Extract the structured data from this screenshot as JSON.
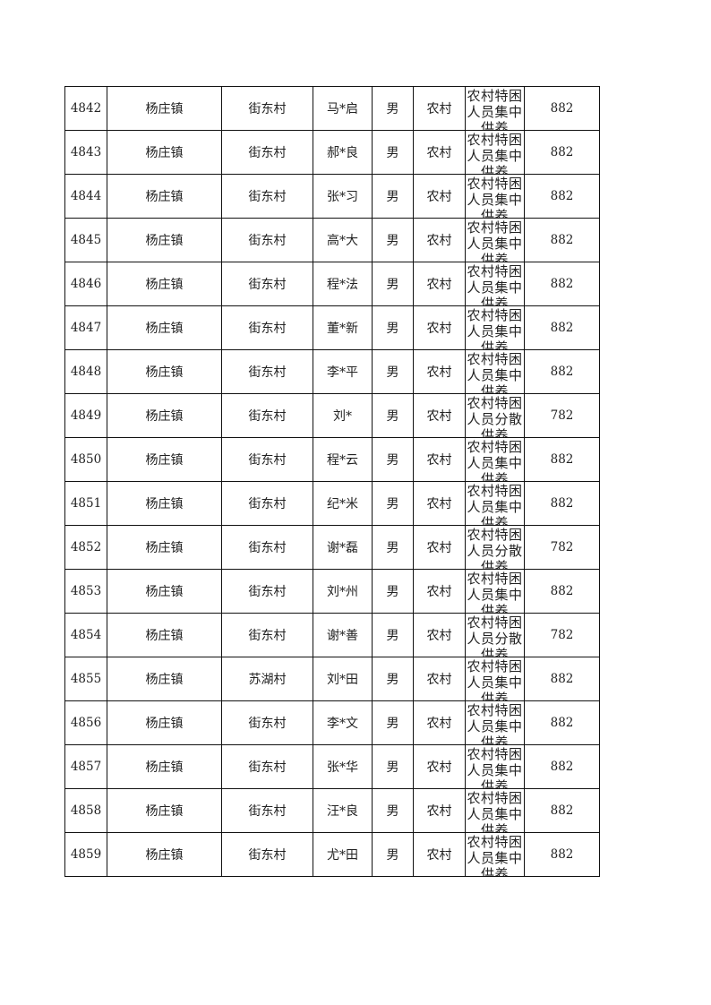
{
  "rows": [
    {
      "id": "4842",
      "town": "杨庄镇",
      "village": "街东村",
      "name": "马*启",
      "gender": "男",
      "area": "农村",
      "type": "农村特困人员集中供养",
      "amount": "882"
    },
    {
      "id": "4843",
      "town": "杨庄镇",
      "village": "街东村",
      "name": "郝*良",
      "gender": "男",
      "area": "农村",
      "type": "农村特困人员集中供养",
      "amount": "882"
    },
    {
      "id": "4844",
      "town": "杨庄镇",
      "village": "街东村",
      "name": "张*习",
      "gender": "男",
      "area": "农村",
      "type": "农村特困人员集中供养",
      "amount": "882"
    },
    {
      "id": "4845",
      "town": "杨庄镇",
      "village": "街东村",
      "name": "高*大",
      "gender": "男",
      "area": "农村",
      "type": "农村特困人员集中供养",
      "amount": "882"
    },
    {
      "id": "4846",
      "town": "杨庄镇",
      "village": "街东村",
      "name": "程*法",
      "gender": "男",
      "area": "农村",
      "type": "农村特困人员集中供养",
      "amount": "882"
    },
    {
      "id": "4847",
      "town": "杨庄镇",
      "village": "街东村",
      "name": "董*新",
      "gender": "男",
      "area": "农村",
      "type": "农村特困人员集中供养",
      "amount": "882"
    },
    {
      "id": "4848",
      "town": "杨庄镇",
      "village": "街东村",
      "name": "李*平",
      "gender": "男",
      "area": "农村",
      "type": "农村特困人员集中供养",
      "amount": "882"
    },
    {
      "id": "4849",
      "town": "杨庄镇",
      "village": "街东村",
      "name": "刘*",
      "gender": "男",
      "area": "农村",
      "type": "农村特困人员分散供养",
      "amount": "782"
    },
    {
      "id": "4850",
      "town": "杨庄镇",
      "village": "街东村",
      "name": "程*云",
      "gender": "男",
      "area": "农村",
      "type": "农村特困人员集中供养",
      "amount": "882"
    },
    {
      "id": "4851",
      "town": "杨庄镇",
      "village": "街东村",
      "name": "纪*米",
      "gender": "男",
      "area": "农村",
      "type": "农村特困人员集中供养",
      "amount": "882"
    },
    {
      "id": "4852",
      "town": "杨庄镇",
      "village": "街东村",
      "name": "谢*磊",
      "gender": "男",
      "area": "农村",
      "type": "农村特困人员分散供养",
      "amount": "782"
    },
    {
      "id": "4853",
      "town": "杨庄镇",
      "village": "街东村",
      "name": "刘*州",
      "gender": "男",
      "area": "农村",
      "type": "农村特困人员集中供养",
      "amount": "882"
    },
    {
      "id": "4854",
      "town": "杨庄镇",
      "village": "街东村",
      "name": "谢*善",
      "gender": "男",
      "area": "农村",
      "type": "农村特困人员分散供养",
      "amount": "782"
    },
    {
      "id": "4855",
      "town": "杨庄镇",
      "village": "苏湖村",
      "name": "刘*田",
      "gender": "男",
      "area": "农村",
      "type": "农村特困人员集中供养",
      "amount": "882"
    },
    {
      "id": "4856",
      "town": "杨庄镇",
      "village": "街东村",
      "name": "李*文",
      "gender": "男",
      "area": "农村",
      "type": "农村特困人员集中供养",
      "amount": "882"
    },
    {
      "id": "4857",
      "town": "杨庄镇",
      "village": "街东村",
      "name": "张*华",
      "gender": "男",
      "area": "农村",
      "type": "农村特困人员集中供养",
      "amount": "882"
    },
    {
      "id": "4858",
      "town": "杨庄镇",
      "village": "街东村",
      "name": "汪*良",
      "gender": "男",
      "area": "农村",
      "type": "农村特困人员集中供养",
      "amount": "882"
    },
    {
      "id": "4859",
      "town": "杨庄镇",
      "village": "街东村",
      "name": "尤*田",
      "gender": "男",
      "area": "农村",
      "type": "农村特困人员集中供养",
      "amount": "882"
    }
  ]
}
